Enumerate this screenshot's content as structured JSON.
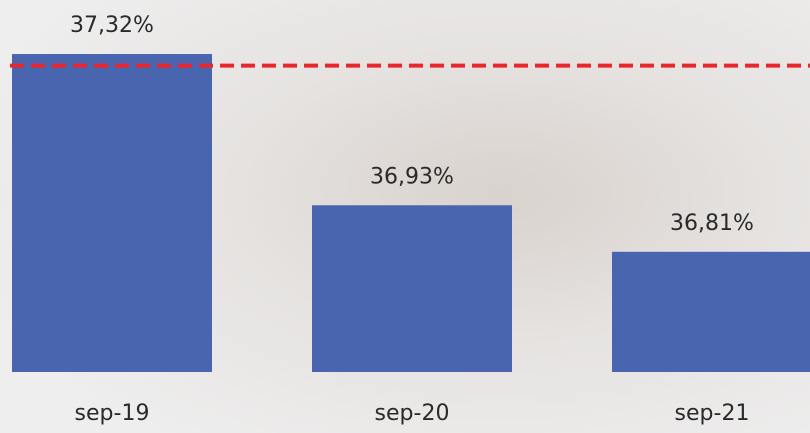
{
  "chart_data": {
    "type": "bar",
    "categories": [
      "sep-19",
      "sep-20",
      "sep-21"
    ],
    "values": [
      37.32,
      36.93,
      36.81
    ],
    "value_labels": [
      "37,32%",
      "36,93%",
      "36,81%"
    ],
    "color": "#4a65b0",
    "ylim": [
      36.5,
      37.4
    ],
    "reference_line": {
      "value": 37.29,
      "color": "#e8262b",
      "style": "dashed"
    }
  }
}
